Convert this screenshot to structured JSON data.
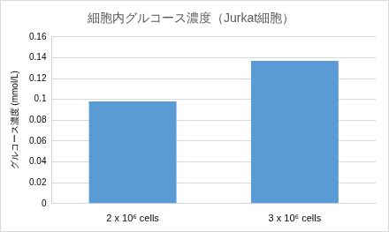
{
  "chart_data": {
    "type": "bar",
    "title": "細胞内グルコース濃度（Jurkat細胞）",
    "y_label": "グルコース濃度 (mmol/L)",
    "categories": [
      "2 x 10⁶ cells",
      "3 x 10⁶ cells"
    ],
    "values": [
      0.098,
      0.137
    ],
    "color": "#5b9bd5",
    "ylim": [
      0,
      0.16
    ],
    "yticks": [
      0,
      0.02,
      0.04,
      0.06,
      0.08,
      0.1,
      0.12,
      0.14,
      0.16
    ],
    "grid": true
  }
}
